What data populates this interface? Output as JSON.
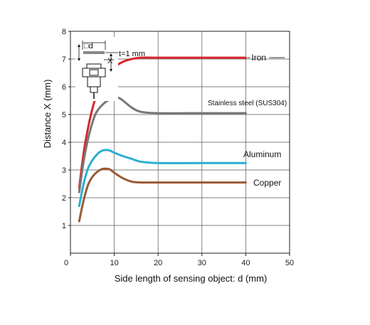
{
  "chart_data": {
    "type": "line",
    "xlabel": "Side length of sensing object: d (mm)",
    "ylabel": "Distance X (mm)",
    "xlim": [
      0,
      50
    ],
    "ylim": [
      0,
      8
    ],
    "xticks": [
      "0",
      "10",
      "20",
      "30",
      "40",
      "50"
    ],
    "yticks": [
      "1",
      "2",
      "3",
      "4",
      "5",
      "6",
      "7",
      "8"
    ],
    "grid": true,
    "series": [
      {
        "name": "Iron",
        "color": "#d7262b",
        "points": [
          [
            2,
            2.35
          ],
          [
            3,
            3.6
          ],
          [
            4,
            4.5
          ],
          [
            5,
            5.2
          ],
          [
            6,
            5.7
          ],
          [
            8,
            6.3
          ],
          [
            10,
            6.7
          ],
          [
            12,
            6.9
          ],
          [
            14,
            7.0
          ],
          [
            16,
            7.05
          ],
          [
            20,
            7.05
          ],
          [
            30,
            7.05
          ],
          [
            40,
            7.05
          ]
        ]
      },
      {
        "name": "Stainless steel (SUS304)",
        "color": "#777777",
        "points": [
          [
            2,
            2.2
          ],
          [
            3,
            3.3
          ],
          [
            4,
            4.1
          ],
          [
            5,
            4.7
          ],
          [
            6,
            5.1
          ],
          [
            8,
            5.45
          ],
          [
            10,
            5.6
          ],
          [
            11,
            5.6
          ],
          [
            12,
            5.5
          ],
          [
            14,
            5.25
          ],
          [
            16,
            5.1
          ],
          [
            20,
            5.05
          ],
          [
            30,
            5.05
          ],
          [
            40,
            5.05
          ]
        ]
      },
      {
        "name": "Aluminum",
        "color": "#2aaed3",
        "points": [
          [
            2,
            1.7
          ],
          [
            3,
            2.5
          ],
          [
            4,
            3.05
          ],
          [
            5,
            3.35
          ],
          [
            6,
            3.55
          ],
          [
            7,
            3.68
          ],
          [
            8,
            3.72
          ],
          [
            9,
            3.7
          ],
          [
            10,
            3.62
          ],
          [
            12,
            3.5
          ],
          [
            14,
            3.4
          ],
          [
            16,
            3.3
          ],
          [
            20,
            3.25
          ],
          [
            30,
            3.25
          ],
          [
            40,
            3.25
          ]
        ]
      },
      {
        "name": "Copper",
        "color": "#9a5a36",
        "points": [
          [
            2,
            1.15
          ],
          [
            3,
            1.9
          ],
          [
            4,
            2.45
          ],
          [
            5,
            2.75
          ],
          [
            6,
            2.92
          ],
          [
            7,
            3.02
          ],
          [
            8,
            3.05
          ],
          [
            9,
            3.02
          ],
          [
            10,
            2.9
          ],
          [
            12,
            2.7
          ],
          [
            14,
            2.58
          ],
          [
            16,
            2.55
          ],
          [
            20,
            2.55
          ],
          [
            30,
            2.55
          ],
          [
            40,
            2.55
          ]
        ]
      }
    ],
    "inset": {
      "d_label": "□d",
      "thickness_label": "t=1 mm",
      "x_label": "X"
    }
  }
}
